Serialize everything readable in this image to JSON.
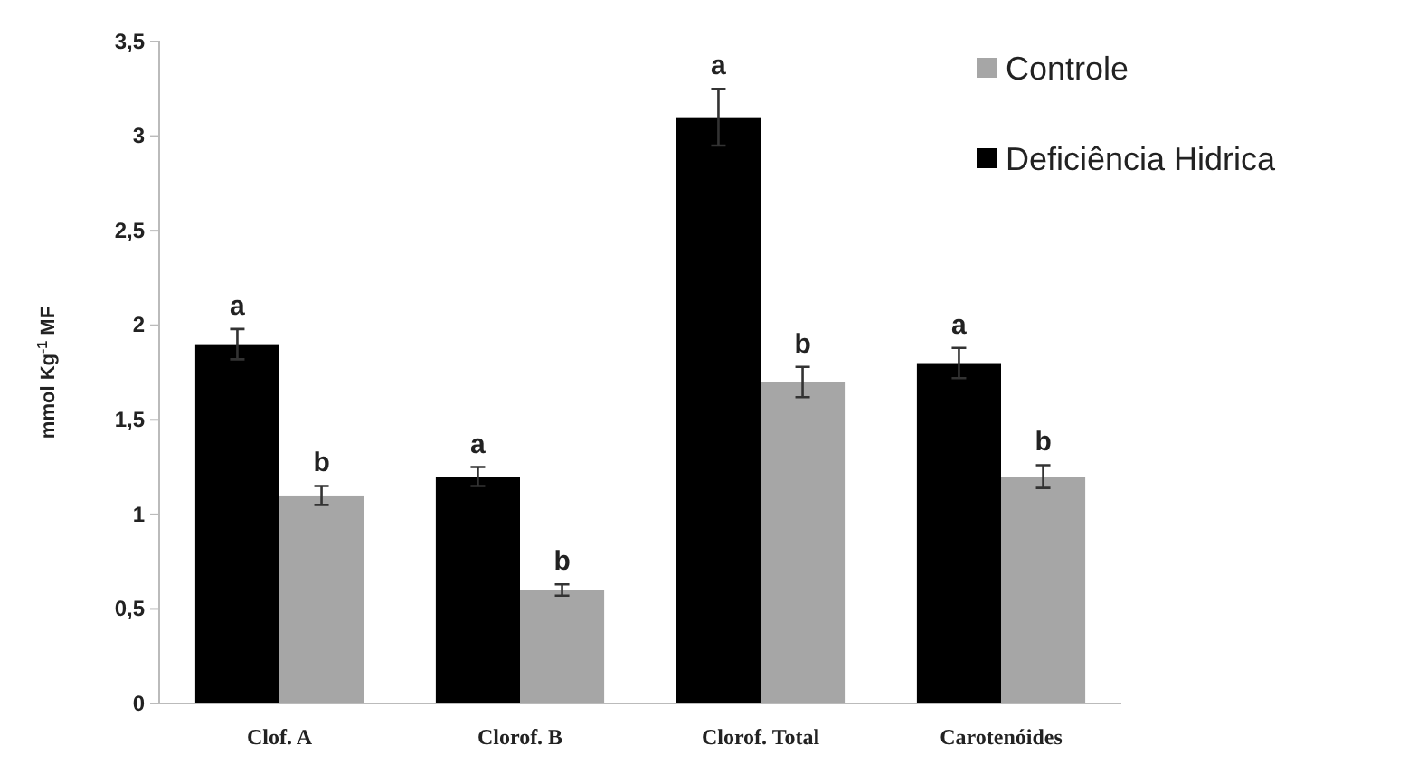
{
  "chart_data": {
    "type": "bar",
    "ylabel": "mmol Kg$^{-1}$ MF",
    "categories": [
      "Clof. A",
      "Clorof. B",
      "Clorof. Total",
      "Carotenóides"
    ],
    "series": [
      {
        "name": "Deficiência Hidrica",
        "color": "#000000",
        "values": [
          1.9,
          1.2,
          3.1,
          1.8
        ],
        "errors": [
          0.08,
          0.05,
          0.15,
          0.08
        ]
      },
      {
        "name": "Controle",
        "color": "#a6a6a6",
        "values": [
          1.1,
          0.6,
          1.7,
          1.2
        ],
        "errors": [
          0.05,
          0.03,
          0.08,
          0.06
        ]
      }
    ],
    "ylim": [
      0,
      3.5
    ],
    "yticks": [
      0,
      {
        "value": 0.5,
        "label": "0,5"
      },
      1,
      {
        "value": 1.5,
        "label": "1,5"
      },
      2,
      {
        "value": 2.5,
        "label": "2,5"
      },
      3,
      {
        "value": 3.5,
        "label": "3,5"
      }
    ],
    "grid": false,
    "legend": "top right",
    "annotations": [
      {
        "text": "a",
        "x": "Clof. A",
        "y": 1.9
      },
      {
        "text": "b",
        "x": "Clof. A",
        "y": 1.1
      },
      {
        "text": "a",
        "x": "Clorof. B",
        "y": 1.2
      },
      {
        "text": "b",
        "x": "Clorof. B",
        "y": 0.6
      },
      {
        "text": "a",
        "x": "Clorof. Total",
        "y": 3.1
      },
      {
        "text": "b",
        "x": "Clorof. Total",
        "y": 1.7
      },
      {
        "text": "a",
        "x": "Carotenóides",
        "y": 1.8
      },
      {
        "text": "b",
        "x": "Carotenóides",
        "y": 1.2
      }
    ]
  }
}
